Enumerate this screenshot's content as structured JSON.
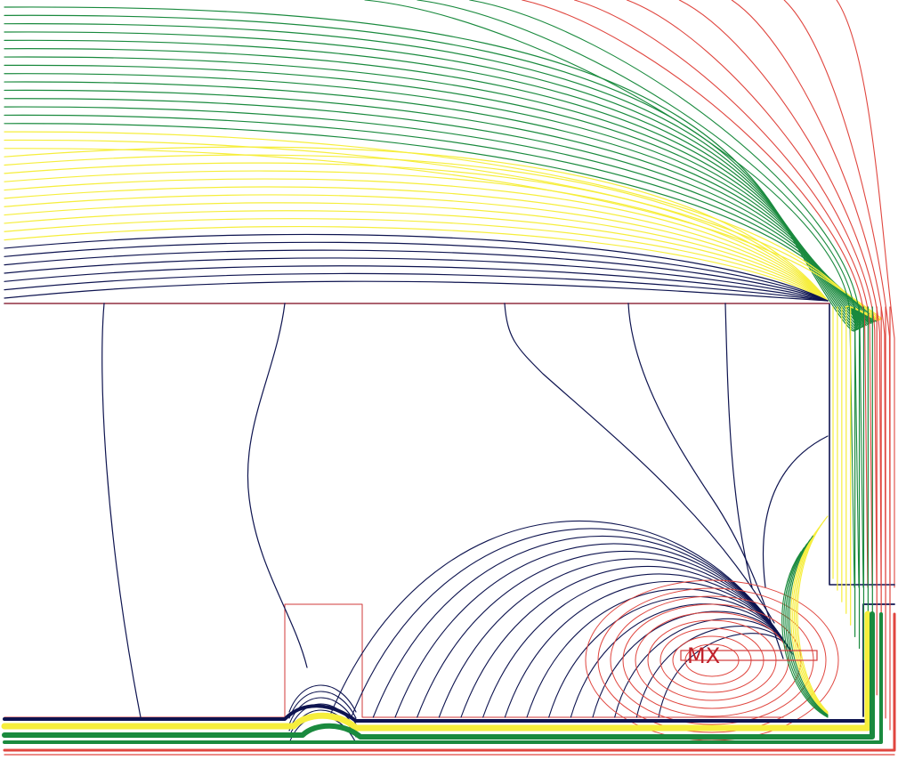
{
  "labels": {
    "max_marker": "MX"
  },
  "colors": {
    "background": "#ffffff",
    "boundary": "#d23a3a",
    "navy": "#0e1450",
    "yellow": "#f6ee3c",
    "green": "#1a8a3e",
    "red": "#e0463f"
  }
}
